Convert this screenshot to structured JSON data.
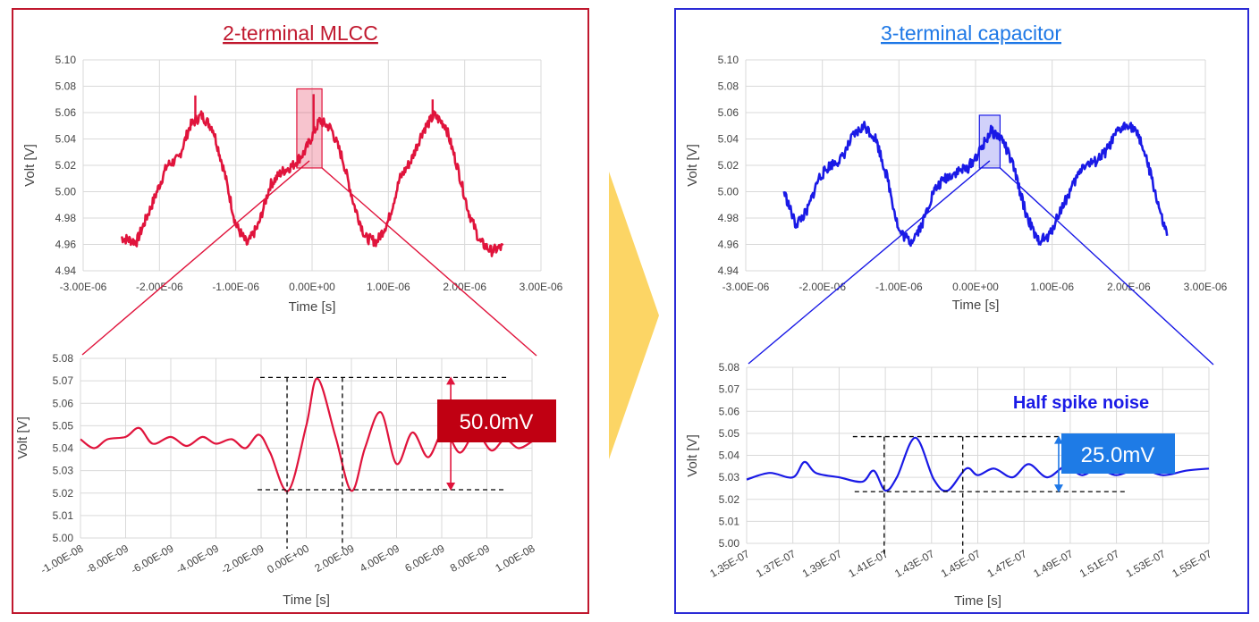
{
  "colors": {
    "left_accent": "#e0143c",
    "left_frame": "#c0182e",
    "left_badge": "#c00012",
    "right_accent": "#1a1ae6",
    "right_frame": "#2b2bd6",
    "right_title": "#1e78e6",
    "right_badge": "#1e7be6",
    "right_zoomline": "#1e78e6",
    "arrow": "#fcd565",
    "grid": "#d9d9d9"
  },
  "left": {
    "title": "2-terminal MLCC",
    "badge": "50.0mV"
  },
  "right": {
    "title": "3-terminal capacitor",
    "badge": "25.0mV",
    "annotation": "Half spike noise"
  },
  "chart_data": [
    {
      "id": "left-overview",
      "type": "line",
      "xlabel": "Time [s]",
      "ylabel": "Volt [V]",
      "xlim": [
        -3e-06,
        3e-06
      ],
      "ylim": [
        4.94,
        5.1
      ],
      "xticks": [
        "-3.00E-06",
        "-2.00E-06",
        "-1.00E-06",
        "0.00E+00",
        "1.00E-06",
        "2.00E-06",
        "3.00E-06"
      ],
      "yticks": [
        "4.94",
        "4.96",
        "4.98",
        "5.00",
        "5.02",
        "5.04",
        "5.06",
        "5.08",
        "5.10"
      ],
      "series": [
        {
          "color": "#e0143c",
          "x": [
            -2.5e-06,
            -2.3e-06,
            -2.1e-06,
            -1.9e-06,
            -1.75e-06,
            -1.6e-06,
            -1.45e-06,
            -1.3e-06,
            -1.15e-06,
            -1e-06,
            -8.5e-07,
            -7e-07,
            -5.5e-07,
            -4e-07,
            -2.5e-07,
            -1e-07,
            0.0,
            1e-07,
            2.5e-07,
            4e-07,
            5.5e-07,
            7e-07,
            8.5e-07,
            1e-06,
            1.15e-06,
            1.3e-06,
            1.45e-06,
            1.6e-06,
            1.75e-06,
            1.9e-06,
            2.05e-06,
            2.2e-06,
            2.35e-06,
            2.5e-06
          ],
          "y": [
            4.965,
            4.962,
            4.99,
            5.02,
            5.025,
            5.05,
            5.058,
            5.048,
            5.015,
            4.975,
            4.96,
            4.975,
            5.005,
            5.015,
            5.02,
            5.03,
            5.042,
            5.054,
            5.048,
            5.025,
            4.99,
            4.965,
            4.962,
            4.978,
            5.01,
            5.024,
            5.046,
            5.058,
            5.05,
            5.02,
            4.985,
            4.962,
            4.955,
            4.958
          ]
        }
      ],
      "spikes": [
        {
          "x": -1.53e-06,
          "y": 5.073
        },
        {
          "x": 2e-08,
          "y": 5.074
        },
        {
          "x": 1.58e-06,
          "y": 5.07
        }
      ]
    },
    {
      "id": "left-zoom",
      "type": "line",
      "xlabel": "Time [s]",
      "ylabel": "Volt [V]",
      "xlim": [
        -1e-08,
        1e-08
      ],
      "ylim": [
        5.0,
        5.08
      ],
      "xticks": [
        "-1.00E-08",
        "-8.00E-09",
        "-6.00E-09",
        "-4.00E-09",
        "-2.00E-09",
        "0.00E+00",
        "2.00E-09",
        "4.00E-09",
        "6.00E-09",
        "8.00E-09",
        "1.00E-08"
      ],
      "yticks": [
        "5.00",
        "5.01",
        "5.02",
        "5.03",
        "5.04",
        "5.05",
        "5.06",
        "5.07",
        "5.08"
      ],
      "series": [
        {
          "color": "#e0143c",
          "x": [
            -1e-08,
            -9.4e-09,
            -8.8e-09,
            -8e-09,
            -7.4e-09,
            -6.8e-09,
            -6e-09,
            -5.3e-09,
            -4.6e-09,
            -4e-09,
            -3.3e-09,
            -2.7e-09,
            -2.1e-09,
            -1.6e-09,
            -8e-10,
            0.0,
            5e-10,
            1.3e-09,
            2e-09,
            2.6e-09,
            3.3e-09,
            4e-09,
            4.7e-09,
            5.4e-09,
            6.1e-09,
            6.8e-09,
            7.5e-09,
            8.2e-09,
            8.8e-09,
            9.4e-09,
            1e-08
          ],
          "y": [
            5.044,
            5.04,
            5.044,
            5.045,
            5.049,
            5.042,
            5.045,
            5.041,
            5.045,
            5.042,
            5.044,
            5.04,
            5.046,
            5.038,
            5.021,
            5.05,
            5.071,
            5.045,
            5.021,
            5.04,
            5.056,
            5.033,
            5.047,
            5.036,
            5.048,
            5.038,
            5.047,
            5.039,
            5.044,
            5.04,
            5.043
          ]
        }
      ],
      "annotations": {
        "high": 5.0715,
        "low": 5.0215,
        "x_left": -8.5e-10,
        "x_right": 1.6e-09,
        "arrow_x": 6.4e-09
      }
    },
    {
      "id": "right-overview",
      "type": "line",
      "xlabel": "Time [s]",
      "ylabel": "Volt [V]",
      "xlim": [
        -3e-06,
        3e-06
      ],
      "ylim": [
        4.94,
        5.1
      ],
      "xticks": [
        "-3.00E-06",
        "-2.00E-06",
        "-1.00E-06",
        "0.00E+00",
        "1.00E-06",
        "2.00E-06",
        "3.00E-06"
      ],
      "yticks": [
        "4.94",
        "4.96",
        "4.98",
        "5.00",
        "5.02",
        "5.04",
        "5.06",
        "5.08",
        "5.10"
      ],
      "series": [
        {
          "color": "#1a1ae6",
          "x": [
            -2.5e-06,
            -2.35e-06,
            -2.2e-06,
            -2.05e-06,
            -1.9e-06,
            -1.75e-06,
            -1.6e-06,
            -1.45e-06,
            -1.3e-06,
            -1.15e-06,
            -1e-06,
            -8.5e-07,
            -7e-07,
            -5.5e-07,
            -4e-07,
            -2.5e-07,
            -1e-07,
            5e-08,
            2e-07,
            3.5e-07,
            5e-07,
            6.5e-07,
            8e-07,
            9.5e-07,
            1.1e-06,
            1.25e-06,
            1.4e-06,
            1.55e-06,
            1.7e-06,
            1.85e-06,
            2e-06,
            2.15e-06,
            2.3e-06,
            2.45e-06,
            2.5e-06
          ],
          "y": [
            5.0,
            4.975,
            4.985,
            5.01,
            5.02,
            5.025,
            5.042,
            5.05,
            5.04,
            5.01,
            4.97,
            4.962,
            4.975,
            5.0,
            5.01,
            5.015,
            5.018,
            5.03,
            5.046,
            5.04,
            5.018,
            4.985,
            4.963,
            4.965,
            4.985,
            5.002,
            5.02,
            5.022,
            5.03,
            5.045,
            5.052,
            5.04,
            5.01,
            4.975,
            4.968
          ]
        }
      ]
    },
    {
      "id": "right-zoom",
      "type": "line",
      "xlabel": "Time [s]",
      "ylabel": "Volt [V]",
      "xlim": [
        1.35e-07,
        1.55e-07
      ],
      "ylim": [
        5.0,
        5.08
      ],
      "xticks": [
        "1.35E-07",
        "1.37E-07",
        "1.39E-07",
        "1.41E-07",
        "1.43E-07",
        "1.45E-07",
        "1.47E-07",
        "1.49E-07",
        "1.51E-07",
        "1.53E-07",
        "1.55E-07"
      ],
      "yticks": [
        "5.00",
        "5.01",
        "5.02",
        "5.03",
        "5.04",
        "5.05",
        "5.06",
        "5.07",
        "5.08"
      ],
      "series": [
        {
          "color": "#1a1ae6",
          "x": [
            1.35e-07,
            1.36e-07,
            1.37e-07,
            1.375e-07,
            1.38e-07,
            1.39e-07,
            1.4e-07,
            1.405e-07,
            1.41e-07,
            1.415e-07,
            1.423e-07,
            1.431e-07,
            1.437e-07,
            1.445e-07,
            1.45e-07,
            1.457e-07,
            1.465e-07,
            1.472e-07,
            1.48e-07,
            1.488e-07,
            1.495e-07,
            1.502e-07,
            1.51e-07,
            1.52e-07,
            1.53e-07,
            1.54e-07,
            1.55e-07
          ],
          "y": [
            5.029,
            5.032,
            5.03,
            5.037,
            5.032,
            5.03,
            5.028,
            5.033,
            5.024,
            5.03,
            5.048,
            5.029,
            5.024,
            5.034,
            5.031,
            5.034,
            5.03,
            5.036,
            5.03,
            5.035,
            5.031,
            5.034,
            5.031,
            5.034,
            5.031,
            5.033,
            5.034
          ]
        }
      ],
      "annotations": {
        "high": 5.0485,
        "low": 5.0235,
        "x_left": 1.4095e-07,
        "x_right": 1.4435e-07,
        "arrow_x": 1.485e-07
      }
    }
  ]
}
